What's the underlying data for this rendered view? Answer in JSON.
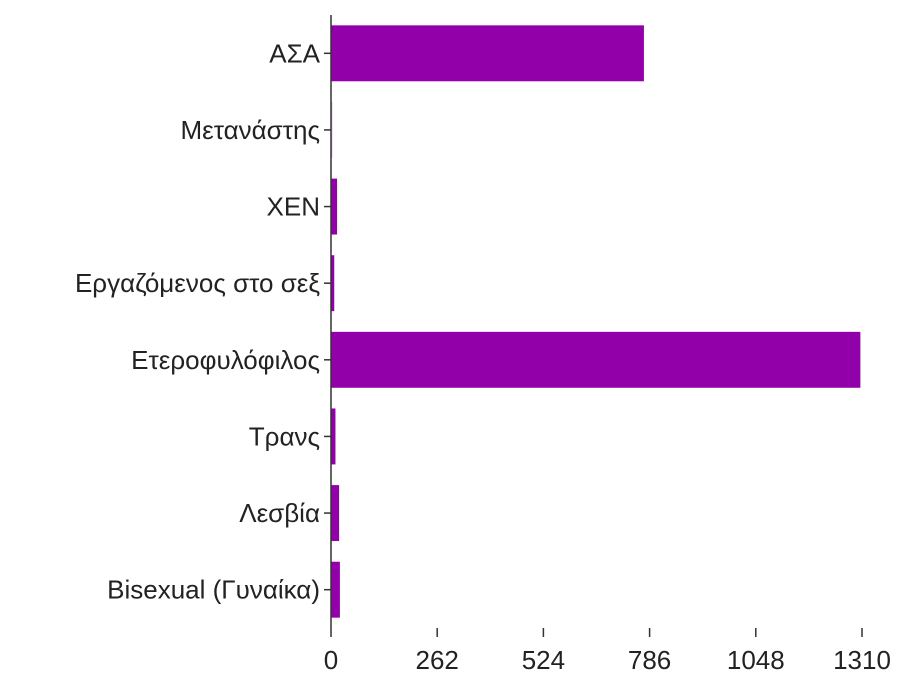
{
  "chart_data": {
    "type": "bar",
    "orientation": "horizontal",
    "title": "",
    "xlabel": "",
    "ylabel": "",
    "categories": [
      "ΑΣΑ",
      "Μετανάστης",
      "ΧΕΝ",
      "Εργαζόμενος στο σεξ",
      "Ετεροφυλόφιλος",
      "Τρανς",
      "Λεσβία",
      "Bisexual (Γυναίκα)"
    ],
    "values": [
      772,
      3,
      15,
      8,
      1306,
      11,
      20,
      22
    ],
    "xlim": [
      0,
      1310
    ],
    "xticks": [
      0,
      262,
      524,
      786,
      1048,
      1310
    ],
    "xtick_labels": [
      "0",
      "262",
      "524",
      "786",
      "1048",
      "1310"
    ],
    "grid": false,
    "legend": "none",
    "colors": {
      "bar": "#9100a8",
      "bar_light": "#e3c2ea",
      "axis": "#333333",
      "text": "#222222"
    }
  }
}
